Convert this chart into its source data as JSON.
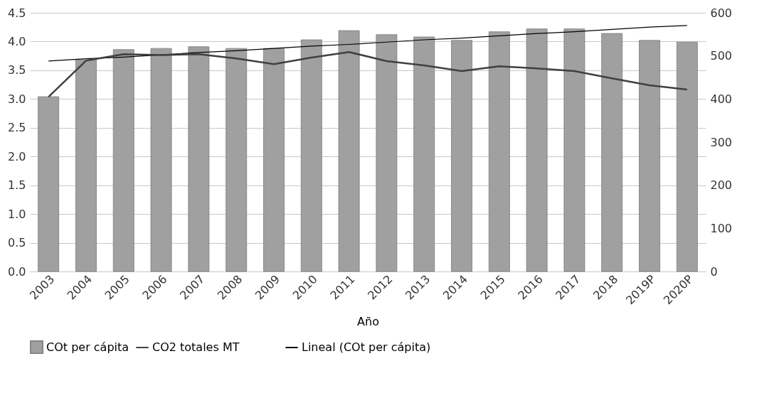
{
  "chart_data": {
    "type": "bar",
    "xlabel": "Año",
    "categories": [
      "2003",
      "2004",
      "2005",
      "2006",
      "2007",
      "2008",
      "2009",
      "2010",
      "2011",
      "2012",
      "2013",
      "2014",
      "2015",
      "2016",
      "2017",
      "2018",
      "2019P",
      "2020P"
    ],
    "series": [
      {
        "name": "COt per cápita",
        "color": "#a0a0a0",
        "values": [
          3.04,
          3.68,
          3.86,
          3.88,
          3.91,
          3.88,
          3.88,
          4.03,
          4.19,
          4.12,
          4.08,
          4.02,
          4.17,
          4.22,
          4.22,
          4.14,
          4.02,
          3.99
        ]
      },
      {
        "name": "CO2 totales MT",
        "type": "line",
        "axis": "y2",
        "color": "#404040",
        "values": [
          405,
          489,
          504,
          502,
          504,
          494,
          481,
          496,
          509,
          488,
          478,
          465,
          476,
          471,
          465,
          448,
          432,
          422
        ]
      },
      {
        "name": "Lineal (COt per cápita)",
        "type": "line",
        "color": "#000000",
        "values": [
          3.66,
          3.7,
          3.73,
          3.77,
          3.81,
          3.84,
          3.88,
          3.92,
          3.95,
          3.99,
          4.03,
          4.06,
          4.1,
          4.14,
          4.17,
          4.21,
          4.25,
          4.28
        ]
      }
    ],
    "ylim": [
      0,
      4.5
    ],
    "yticks": [
      {
        "value": 0,
        "label": "0.0"
      },
      {
        "value": 0.5,
        "label": "0.5"
      },
      {
        "value": 1,
        "label": "1.0"
      },
      {
        "value": 1.5,
        "label": "1.5"
      },
      {
        "value": 2,
        "label": "2.0"
      },
      {
        "value": 2.5,
        "label": "2.5"
      },
      {
        "value": 3,
        "label": "3.0"
      },
      {
        "value": 3.5,
        "label": "3.5"
      },
      {
        "value": 4,
        "label": "4.0"
      },
      {
        "value": 4.5,
        "label": "4.5"
      }
    ],
    "y2lim": [
      0,
      600
    ],
    "y2ticks": [
      0,
      100,
      200,
      300,
      400,
      500,
      600
    ],
    "grid": "y",
    "legend": "bottom"
  }
}
